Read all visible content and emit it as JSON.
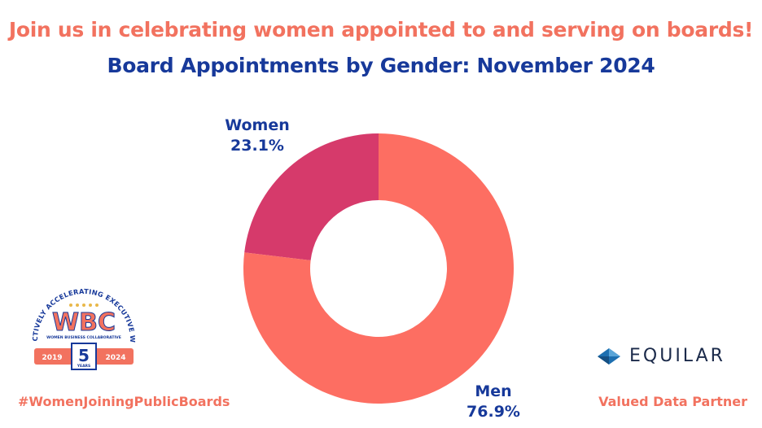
{
  "header": {
    "headline": "Join us in celebrating women appointed to and serving on boards!",
    "title": "Board Appointments by Gender: November 2024"
  },
  "chart_data": {
    "type": "pie",
    "style": "donut",
    "title": "Board Appointments by Gender: November 2024",
    "slices": [
      {
        "name": "Women",
        "value": 23.1,
        "label": "23.1%",
        "color": "#d63a6b"
      },
      {
        "name": "Men",
        "value": 76.9,
        "label": "76.9%",
        "color": "#fd6e62"
      }
    ]
  },
  "logos": {
    "wbc": {
      "arc_text": "COLLECTIVELY ACCELERATING EXECUTIVE WOMEN",
      "name": "WBC",
      "subtitle": "WOMEN BUSINESS COLLABORATIVE",
      "year_start": "2019",
      "year_end": "2024",
      "anniversary": "5",
      "anniversary_unit": "YEARS"
    },
    "equilar": {
      "name": "EQUILAR"
    }
  },
  "footer": {
    "hashtag": "#WomenJoiningPublicBoards",
    "partner": "Valued Data Partner"
  },
  "colors": {
    "coral": "#f2725f",
    "navy": "#17399a",
    "women": "#d63a6b",
    "men": "#fd6e62"
  }
}
